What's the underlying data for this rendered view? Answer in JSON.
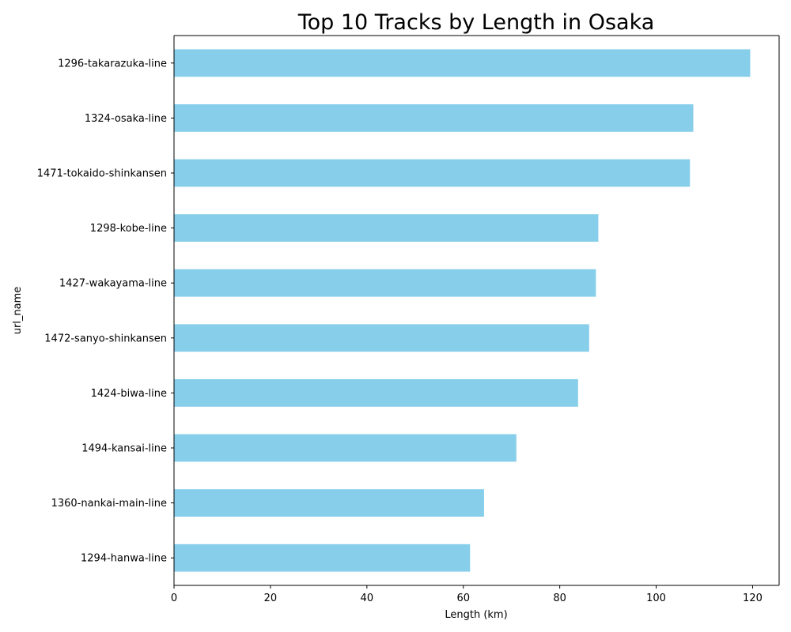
{
  "chart_data": {
    "type": "bar",
    "orientation": "horizontal",
    "title": "Top 10 Tracks by Length in Osaka",
    "xlabel": "Length (km)",
    "ylabel": "url_name",
    "categories": [
      "1296-takarazuka-line",
      "1324-osaka-line",
      "1471-tokaido-shinkansen",
      "1298-kobe-line",
      "1427-wakayama-line",
      "1472-sanyo-shinkansen",
      "1424-biwa-line",
      "1494-kansai-line",
      "1360-nankai-main-line",
      "1294-hanwa-line"
    ],
    "values": [
      119.5,
      107.7,
      107.0,
      88.0,
      87.5,
      86.1,
      83.8,
      71.0,
      64.3,
      61.4
    ],
    "xlim": [
      0,
      125.5
    ],
    "xticks": [
      0,
      20,
      40,
      60,
      80,
      100,
      120
    ],
    "grid": false,
    "legend": "none",
    "bar_color": "#87ceeb"
  }
}
